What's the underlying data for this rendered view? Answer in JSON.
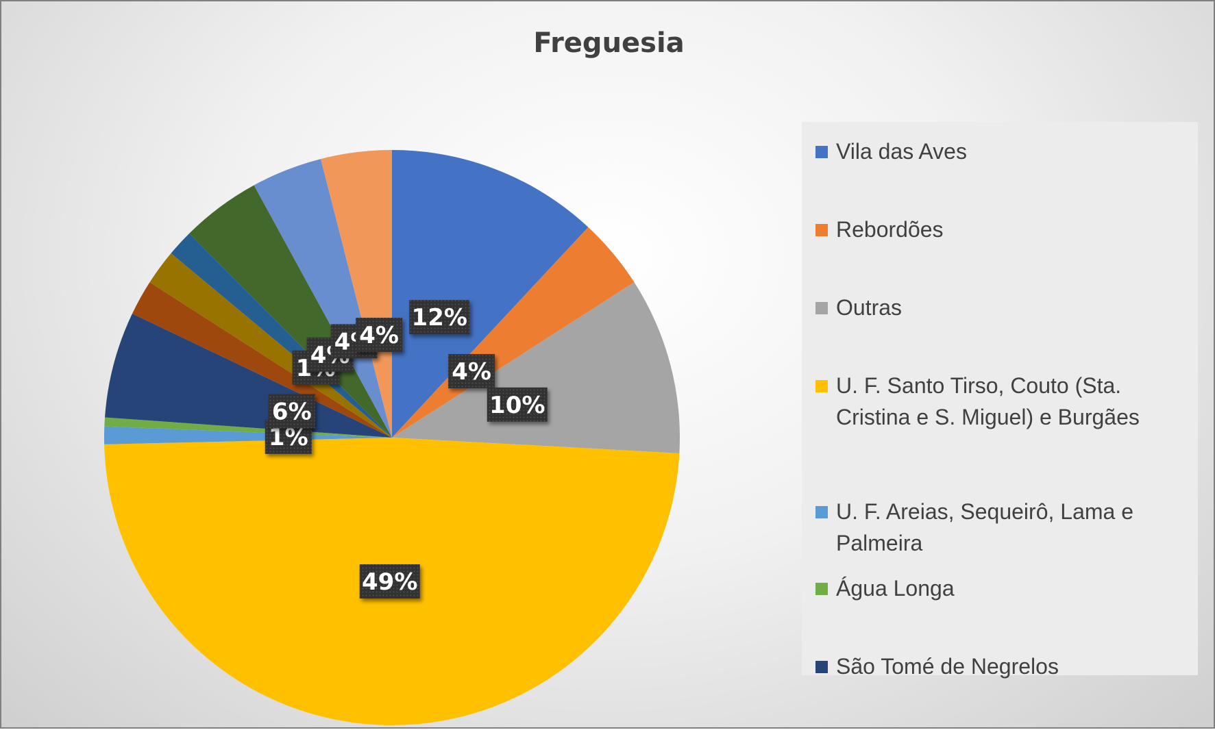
{
  "chart_data": {
    "type": "pie",
    "title": "Freguesia",
    "legend_position": "right",
    "slices": [
      {
        "name": "Vila das Aves",
        "value": 12,
        "label": "12%",
        "color": "#4472c4"
      },
      {
        "name": "Rebordões",
        "value": 4,
        "label": "4%",
        "color": "#ed7d31"
      },
      {
        "name": "Outras",
        "value": 10,
        "label": "10%",
        "color": "#a5a5a5"
      },
      {
        "name": "U. F. Santo Tirso, Couto (Sta. Cristina e S. Miguel) e Burgães",
        "value": 49,
        "label": "49%",
        "color": "#ffc000"
      },
      {
        "name": "U. F. Areias, Sequeirô, Lama e Palmeira",
        "value": 1,
        "label": "1%",
        "color": "#5b9bd5"
      },
      {
        "name": "Água Longa",
        "value": 0.5,
        "label": "",
        "color": "#70ad47"
      },
      {
        "name": "São Tomé de Negrelos",
        "value": 6,
        "label": "6%",
        "color": "#264478"
      },
      {
        "name": "",
        "value": 2,
        "label": "",
        "color": "#9e480e"
      },
      {
        "name": "",
        "value": 2,
        "label": "",
        "color": "#997300"
      },
      {
        "name": "",
        "value": 1.5,
        "label": "1%",
        "color": "#255e91"
      },
      {
        "name": "",
        "value": 4.5,
        "label": "4%",
        "color": "#43682b"
      },
      {
        "name": "",
        "value": 4,
        "label": "4%",
        "color": "#698ed0"
      },
      {
        "name": "",
        "value": 4,
        "label": "4%",
        "color": "#f1975a"
      }
    ]
  }
}
